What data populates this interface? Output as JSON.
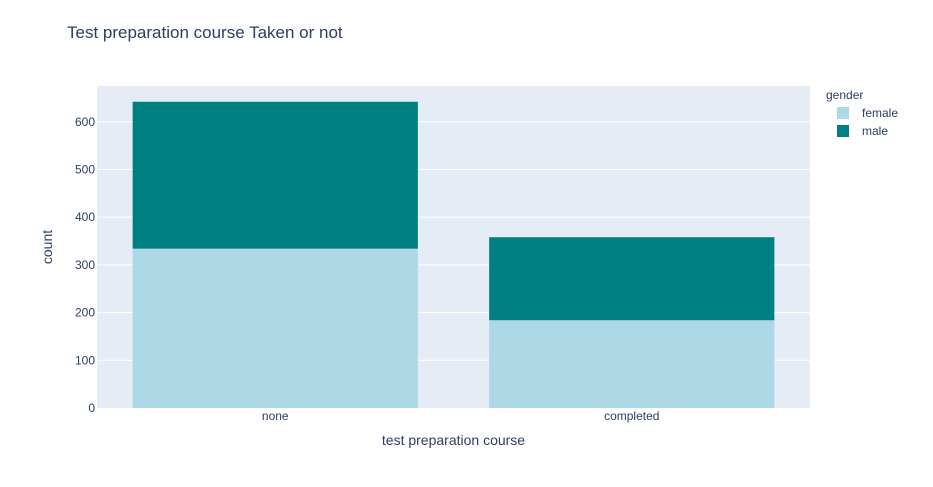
{
  "chart_data": {
    "type": "bar",
    "barmode": "stack",
    "title": "Test preparation course Taken or not",
    "xlabel": "test preparation course",
    "ylabel": "count",
    "categories": [
      "none",
      "completed"
    ],
    "series": [
      {
        "name": "female",
        "values": [
          334,
          184
        ],
        "color": "#add8e6"
      },
      {
        "name": "male",
        "values": [
          308,
          174
        ],
        "color": "#008080"
      }
    ],
    "ylim": [
      0,
      675
    ],
    "yticks": [
      0,
      100,
      200,
      300,
      400,
      500,
      600
    ],
    "grid": true,
    "legend": {
      "title": "gender",
      "placement": "top-right"
    },
    "plot_background": "#e5ecf6",
    "text_color": "#2a3f5f"
  }
}
